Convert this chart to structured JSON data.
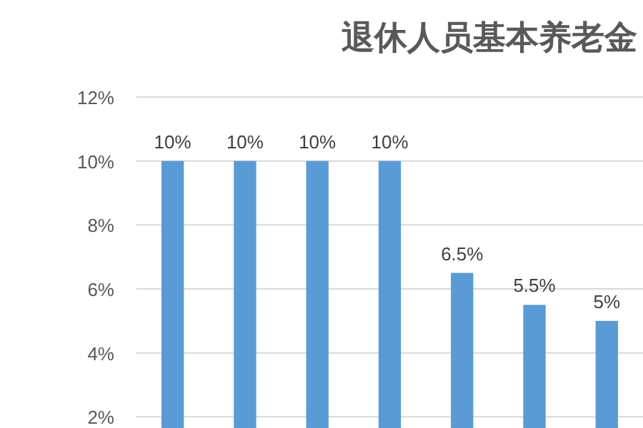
{
  "chart_data": {
    "type": "bar",
    "title": "退休人员基本养老金",
    "categories": [
      null,
      null,
      null,
      null,
      null,
      null,
      null
    ],
    "values": [
      10,
      10,
      10,
      10,
      6.5,
      5.5,
      5
    ],
    "value_labels": [
      "10%",
      "10%",
      "10%",
      "10%",
      "6.5%",
      "5.5%",
      "5%"
    ],
    "color": "#5b9bd5",
    "ylim": [
      1.65,
      12
    ],
    "yticks": [
      {
        "value": 2,
        "label": "2%"
      },
      {
        "value": 4,
        "label": "4%"
      },
      {
        "value": 6,
        "label": "6%"
      },
      {
        "value": 8,
        "label": "8%"
      },
      {
        "value": 10,
        "label": "10%"
      },
      {
        "value": 12,
        "label": "12%"
      }
    ],
    "grid": "y"
  }
}
